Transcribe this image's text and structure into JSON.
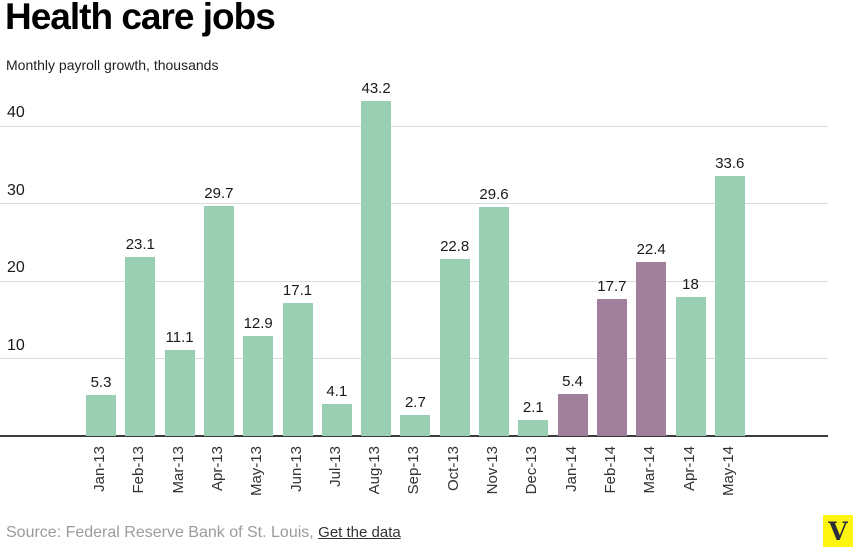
{
  "header": {
    "title": "Health care jobs",
    "subtitle": "Monthly payroll growth, thousands"
  },
  "chart_data": {
    "type": "bar",
    "title": "Health care jobs",
    "ylabel": "Monthly payroll growth, thousands",
    "xlabel": "",
    "categories": [
      "Jan-13",
      "Feb-13",
      "Mar-13",
      "Apr-13",
      "May-13",
      "Jun-13",
      "Jul-13",
      "Aug-13",
      "Sep-13",
      "Oct-13",
      "Nov-13",
      "Dec-13",
      "Jan-14",
      "Feb-14",
      "Mar-14",
      "Apr-14",
      "May-14"
    ],
    "values": [
      5.3,
      23.1,
      11.1,
      29.7,
      12.9,
      17.1,
      4.1,
      43.2,
      2.7,
      22.8,
      29.6,
      2.1,
      5.4,
      17.7,
      22.4,
      18,
      33.6
    ],
    "value_labels": [
      "5.3",
      "23.1",
      "11.1",
      "29.7",
      "12.9",
      "17.1",
      "4.1",
      "43.2",
      "2.7",
      "22.8",
      "29.6",
      "2.1",
      "5.4",
      "17.7",
      "22.4",
      "18",
      "33.6"
    ],
    "highlight_indices": [
      12,
      13,
      14
    ],
    "yticks": [
      10,
      20,
      30,
      40
    ],
    "ylim": [
      0,
      45
    ],
    "grid": true,
    "legend": false
  },
  "colors": {
    "bar_default": "#9bcfb4",
    "bar_highlight": "#a0809a",
    "gridline": "#dcdcdc",
    "axis": "#3b3b3b",
    "value_text": "#1a1a1a",
    "tick_text": "#333333",
    "source_text": "#9b9b9b",
    "link_text": "#333333",
    "logo_bg": "#fdf410",
    "logo_letter_color": "#2b2d3a"
  },
  "footer": {
    "source_text": "Source: Federal Reserve Bank of St. Louis, ",
    "link_label": "Get the data",
    "logo_letter": "V"
  }
}
